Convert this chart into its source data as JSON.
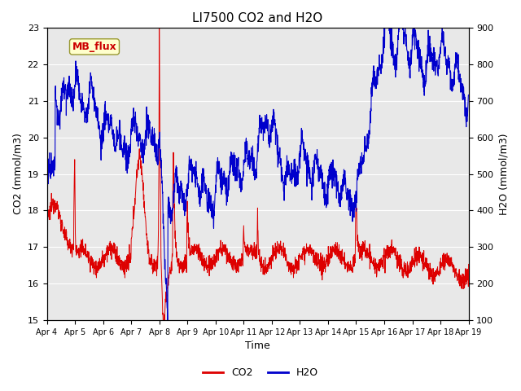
{
  "title": "LI7500 CO2 and H2O",
  "xlabel": "Time",
  "ylabel_left": "CO2 (mmol/m3)",
  "ylabel_right": "H2O (mmol/m3)",
  "ylim_left": [
    15.0,
    23.0
  ],
  "ylim_right": [
    100,
    900
  ],
  "yticks_left": [
    15.0,
    16.0,
    17.0,
    18.0,
    19.0,
    20.0,
    21.0,
    22.0,
    23.0
  ],
  "yticks_right": [
    100,
    200,
    300,
    400,
    500,
    600,
    700,
    800,
    900
  ],
  "xtick_labels": [
    "Apr 4",
    "Apr 5",
    "Apr 6",
    "Apr 7",
    "Apr 8",
    "Apr 9",
    "Apr 10",
    "Apr 11",
    "Apr 12",
    "Apr 13",
    "Apr 14",
    "Apr 15",
    "Apr 16",
    "Apr 17",
    "Apr 18",
    "Apr 19"
  ],
  "annotation_text": "MB_flux",
  "annotation_color": "#cc0000",
  "annotation_bg": "#ffffcc",
  "annotation_edge": "#999933",
  "bg_color": "#e8e8e8",
  "co2_color": "#dd0000",
  "h2o_color": "#0000cc",
  "title_fontsize": 11,
  "axis_label_fontsize": 9,
  "tick_fontsize": 8,
  "legend_fontsize": 9
}
